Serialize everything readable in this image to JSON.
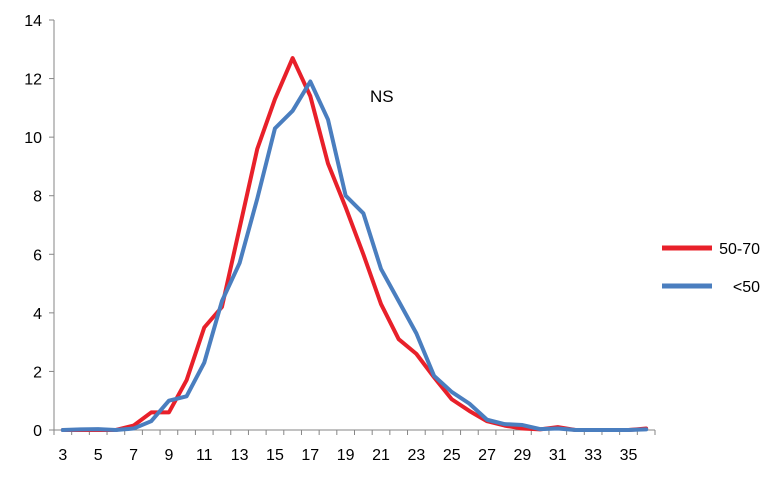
{
  "chart_data": {
    "type": "line",
    "title": "",
    "xlabel": "",
    "ylabel": "",
    "annotation": "NS",
    "x": [
      3,
      4,
      5,
      6,
      7,
      8,
      9,
      10,
      11,
      12,
      13,
      14,
      15,
      16,
      17,
      18,
      19,
      20,
      21,
      22,
      23,
      24,
      25,
      26,
      27,
      28,
      29,
      30,
      31,
      32,
      33,
      34,
      35,
      36
    ],
    "x_tick_labels": [
      "3",
      "5",
      "7",
      "9",
      "11",
      "13",
      "15",
      "17",
      "19",
      "21",
      "23",
      "25",
      "27",
      "29",
      "31",
      "33",
      "35"
    ],
    "y_tick_labels": [
      "0",
      "2",
      "4",
      "6",
      "8",
      "10",
      "12",
      "14"
    ],
    "ylim": [
      0,
      14
    ],
    "grid": false,
    "legend_position": "right",
    "series": [
      {
        "name": "50-70",
        "color": "#e8202a",
        "values": [
          0,
          0,
          0,
          0,
          0.15,
          0.6,
          0.6,
          1.7,
          3.5,
          4.2,
          6.9,
          9.6,
          11.3,
          12.7,
          11.4,
          9.1,
          7.6,
          6,
          4.3,
          3.1,
          2.6,
          1.8,
          1.05,
          0.65,
          0.3,
          0.15,
          0.05,
          0.02,
          0.1,
          0,
          0,
          0,
          0,
          0.05
        ]
      },
      {
        "name": "<50",
        "color": "#4a7ebf",
        "values": [
          0,
          0.02,
          0.03,
          0,
          0.05,
          0.3,
          1,
          1.15,
          2.3,
          4.4,
          5.7,
          7.9,
          10.3,
          10.9,
          11.9,
          10.6,
          8,
          7.4,
          5.5,
          4.4,
          3.3,
          1.85,
          1.3,
          0.9,
          0.35,
          0.2,
          0.17,
          0.03,
          0.05,
          0,
          0,
          0,
          0,
          0.02
        ]
      }
    ]
  }
}
